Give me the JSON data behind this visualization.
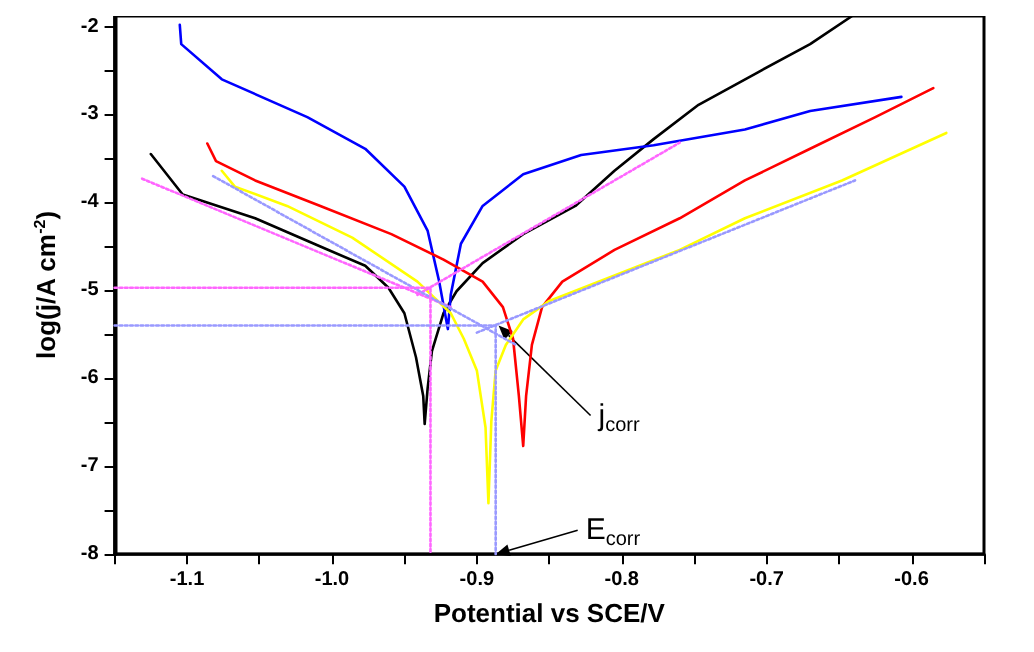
{
  "chart_data": {
    "type": "line",
    "xlabel": "Potential vs SCE/V",
    "ylabel": "log(j/A cm$^{-2}$)",
    "xlim": [
      -1.15,
      -0.55
    ],
    "ylim": [
      -8,
      -1.88
    ],
    "xticks": [
      {
        "value": -1.15,
        "label": null
      },
      -1.1,
      {
        "value": -1.05,
        "label": null
      },
      {
        "value": -1.0,
        "label": "-1.0"
      },
      {
        "value": -0.95,
        "label": null
      },
      -0.9,
      {
        "value": -0.85,
        "label": null
      },
      -0.8,
      {
        "value": -0.75,
        "label": null
      },
      -0.7,
      {
        "value": -0.65,
        "label": null
      },
      -0.6,
      {
        "value": -0.55,
        "label": null
      }
    ],
    "yticks": [
      -8,
      {
        "value": -7.5,
        "label": null
      },
      -7,
      {
        "value": -6.5,
        "label": null
      },
      -6,
      {
        "value": -5.5,
        "label": null
      },
      -5,
      {
        "value": -4.5,
        "label": null
      },
      -4,
      {
        "value": -3.5,
        "label": null
      },
      -3,
      {
        "value": -2.5,
        "label": null
      },
      -2
    ],
    "grid": false,
    "marker": "none",
    "line_style": "solid",
    "series": [
      {
        "color": "#000000",
        "x": [
          -1.125,
          -1.103,
          -1.053,
          -1.004,
          -0.977,
          -0.961,
          -0.95,
          -0.942,
          -0.937,
          -0.936,
          -0.934,
          -0.931,
          -0.923,
          -0.914,
          -0.896,
          -0.868,
          -0.832,
          -0.805,
          -0.778,
          -0.747,
          -0.706,
          -0.67,
          -0.641
        ],
        "values": [
          -3.45,
          -3.91,
          -4.18,
          -4.53,
          -4.72,
          -4.97,
          -5.26,
          -5.76,
          -6.2,
          -6.52,
          -6.12,
          -5.69,
          -5.26,
          -5.01,
          -4.69,
          -4.36,
          -4.04,
          -3.64,
          -3.28,
          -2.89,
          -2.52,
          -2.2,
          -1.88
        ]
      },
      {
        "color": "#0000ff",
        "x": [
          -1.105,
          -1.104,
          -1.076,
          -1.017,
          -0.977,
          -0.95,
          -0.934,
          -0.926,
          -0.92,
          -0.918,
          -0.911,
          -0.896,
          -0.868,
          -0.828,
          -0.778,
          -0.715,
          -0.67,
          -0.607
        ],
        "values": [
          -1.98,
          -2.2,
          -2.6,
          -3.03,
          -3.39,
          -3.82,
          -4.32,
          -4.9,
          -5.44,
          -5.05,
          -4.47,
          -4.04,
          -3.68,
          -3.46,
          -3.35,
          -3.17,
          -2.96,
          -2.8
        ]
      },
      {
        "color": "#ff0000",
        "x": [
          -1.086,
          -1.08,
          -1.053,
          -1.008,
          -0.959,
          -0.923,
          -0.896,
          -0.882,
          -0.875,
          -0.871,
          -0.868,
          -0.866,
          -0.862,
          -0.855,
          -0.841,
          -0.805,
          -0.76,
          -0.715,
          -0.67,
          -0.625,
          -0.585
        ],
        "values": [
          -3.33,
          -3.53,
          -3.75,
          -4.04,
          -4.36,
          -4.65,
          -4.9,
          -5.19,
          -5.55,
          -6.2,
          -6.77,
          -6.2,
          -5.62,
          -5.19,
          -4.9,
          -4.54,
          -4.18,
          -3.75,
          -3.39,
          -3.03,
          -2.7
        ]
      },
      {
        "color": "#ffff00",
        "x": [
          -1.076,
          -1.067,
          -1.031,
          -0.986,
          -0.941,
          -0.918,
          -0.909,
          -0.9,
          -0.894,
          -0.892,
          -0.89,
          -0.887,
          -0.88,
          -0.868,
          -0.85,
          -0.805,
          -0.76,
          -0.715,
          -0.648,
          -0.576
        ],
        "values": [
          -3.64,
          -3.82,
          -4.04,
          -4.4,
          -4.9,
          -5.26,
          -5.55,
          -5.91,
          -6.56,
          -7.42,
          -6.49,
          -5.91,
          -5.62,
          -5.33,
          -5.12,
          -4.83,
          -4.54,
          -4.18,
          -3.75,
          -3.21
        ]
      },
      {
        "color": "#ff66ff",
        "line_style": "dotted",
        "x": [
          -1.131,
          -0.918
        ],
        "values": [
          -3.73,
          -5.19
        ]
      },
      {
        "color": "#ff66ff",
        "line_style": "dotted",
        "x": [
          -0.941,
          -0.76
        ],
        "values": [
          -5.05,
          -3.32
        ]
      },
      {
        "color": "#9999ff",
        "line_style": "dotted",
        "x": [
          -1.082,
          -0.873
        ],
        "values": [
          -3.7,
          -5.62
        ]
      },
      {
        "color": "#9999ff",
        "line_style": "dotted",
        "x": [
          -0.9,
          -0.639
        ],
        "values": [
          -5.48,
          -3.75
        ]
      },
      {
        "color": "#ff66ff",
        "line_style": "dotted",
        "x": [
          -1.15,
          -0.932,
          -0.932
        ],
        "values": [
          -4.97,
          -4.97,
          -8
        ]
      },
      {
        "color": "#9999ff",
        "line_style": "dotted",
        "x": [
          -1.15,
          -0.887,
          -0.887
        ],
        "values": [
          -5.4,
          -5.4,
          -8
        ]
      }
    ],
    "annotations": [
      {
        "text": "j$_{corr}$",
        "x": -0.885,
        "y": -5.4
      },
      {
        "text": "E$_{corr}$",
        "x": -0.887,
        "y": -8
      }
    ]
  }
}
